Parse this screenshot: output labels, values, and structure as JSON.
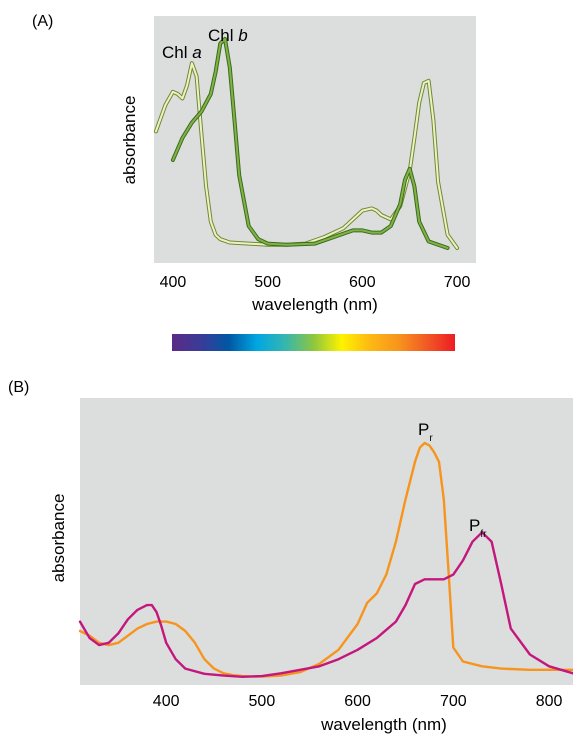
{
  "chart_data": [
    {
      "panel_label": "(A)",
      "type": "line",
      "xlabel": "wavelength (nm)",
      "ylabel": "absorbance",
      "xlim": [
        380,
        720
      ],
      "ylim": [
        0,
        1
      ],
      "x_ticks": [
        400,
        500,
        600,
        700
      ],
      "grid": false,
      "background_color": "#dcdddd",
      "series": [
        {
          "label_main": "Chl ",
          "label_italic": "a",
          "color": "#ecf1c4",
          "outline": "#6f8a34",
          "x": [
            382,
            392,
            400,
            405,
            410,
            415,
            420,
            425,
            430,
            435,
            440,
            445,
            450,
            460,
            480,
            500,
            520,
            540,
            560,
            580,
            600,
            610,
            615,
            620,
            630,
            640,
            650,
            655,
            660,
            665,
            670,
            675,
            680,
            690,
            700
          ],
          "y": [
            0.53,
            0.65,
            0.71,
            0.7,
            0.68,
            0.74,
            0.84,
            0.78,
            0.52,
            0.28,
            0.12,
            0.06,
            0.04,
            0.025,
            0.02,
            0.015,
            0.015,
            0.02,
            0.05,
            0.09,
            0.17,
            0.18,
            0.17,
            0.15,
            0.13,
            0.19,
            0.35,
            0.5,
            0.66,
            0.75,
            0.76,
            0.58,
            0.3,
            0.06,
            0.0
          ]
        },
        {
          "label_main": "Chl ",
          "label_italic": "b",
          "color": "#7fb444",
          "outline": "#3e6a1f",
          "x": [
            400,
            410,
            420,
            430,
            440,
            445,
            450,
            455,
            460,
            465,
            470,
            480,
            490,
            500,
            520,
            550,
            570,
            590,
            600,
            610,
            620,
            630,
            640,
            645,
            650,
            655,
            660,
            670,
            690
          ],
          "y": [
            0.4,
            0.5,
            0.57,
            0.62,
            0.7,
            0.8,
            0.93,
            0.95,
            0.82,
            0.58,
            0.33,
            0.1,
            0.04,
            0.02,
            0.015,
            0.02,
            0.05,
            0.08,
            0.08,
            0.07,
            0.07,
            0.1,
            0.2,
            0.31,
            0.36,
            0.28,
            0.12,
            0.03,
            0.0
          ]
        }
      ],
      "spectrum_colors": [
        "#5b2a86",
        "#3b3b98",
        "#0057a3",
        "#00a6e2",
        "#35b6b0",
        "#8dc63f",
        "#fff200",
        "#fdb913",
        "#f7941d",
        "#f15a24",
        "#ed1c24"
      ]
    },
    {
      "panel_label": "(B)",
      "type": "line",
      "xlabel": "wavelength (nm)",
      "ylabel": "absorbance",
      "xlim": [
        310,
        825
      ],
      "ylim": [
        0,
        1
      ],
      "x_ticks": [
        400,
        500,
        600,
        700,
        800
      ],
      "grid": false,
      "background_color": "#dcdddd",
      "series": [
        {
          "label_main": "P",
          "label_sub": "r",
          "color": "#f7941d",
          "x": [
            310,
            320,
            330,
            340,
            350,
            360,
            370,
            380,
            390,
            400,
            410,
            420,
            430,
            440,
            450,
            460,
            470,
            480,
            490,
            500,
            520,
            540,
            560,
            580,
            600,
            610,
            620,
            630,
            640,
            650,
            660,
            665,
            670,
            675,
            680,
            685,
            690,
            695,
            700,
            710,
            730,
            750,
            780,
            825
          ],
          "y": [
            0.2,
            0.18,
            0.15,
            0.14,
            0.15,
            0.18,
            0.21,
            0.23,
            0.24,
            0.24,
            0.23,
            0.2,
            0.15,
            0.08,
            0.04,
            0.02,
            0.012,
            0.008,
            0.006,
            0.006,
            0.01,
            0.025,
            0.06,
            0.12,
            0.23,
            0.32,
            0.36,
            0.44,
            0.58,
            0.76,
            0.92,
            0.98,
            1.0,
            0.99,
            0.96,
            0.92,
            0.76,
            0.45,
            0.13,
            0.07,
            0.05,
            0.04,
            0.035,
            0.035
          ]
        },
        {
          "label_main": "P",
          "label_sub": "fr",
          "color": "#c4177e",
          "x": [
            310,
            320,
            330,
            340,
            350,
            360,
            370,
            380,
            385,
            390,
            395,
            400,
            410,
            420,
            440,
            460,
            480,
            500,
            520,
            540,
            560,
            580,
            600,
            620,
            640,
            650,
            660,
            670,
            680,
            690,
            700,
            710,
            720,
            730,
            740,
            750,
            760,
            780,
            800,
            825
          ],
          "y": [
            0.24,
            0.17,
            0.14,
            0.15,
            0.19,
            0.25,
            0.29,
            0.31,
            0.31,
            0.28,
            0.22,
            0.15,
            0.08,
            0.04,
            0.018,
            0.01,
            0.005,
            0.008,
            0.02,
            0.035,
            0.05,
            0.08,
            0.12,
            0.17,
            0.24,
            0.31,
            0.4,
            0.42,
            0.42,
            0.42,
            0.44,
            0.5,
            0.58,
            0.62,
            0.58,
            0.4,
            0.21,
            0.1,
            0.05,
            0.02
          ]
        }
      ]
    }
  ]
}
